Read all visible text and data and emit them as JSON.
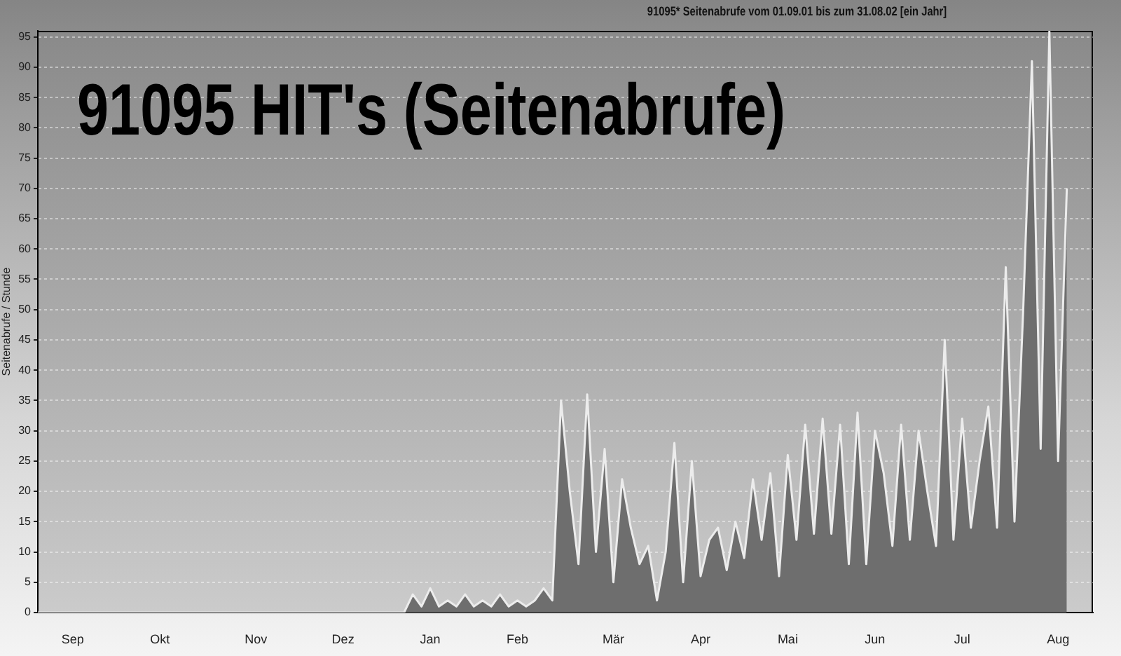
{
  "chart_data": {
    "type": "area",
    "title": "91095 HIT's (Seitenabrufe)",
    "subtitle": "91095* Seitenabrufe vom 01.09.01 bis zum 31.08.02 [ein Jahr]",
    "ylabel": "Seitenabrufe / Stunde",
    "categories": [
      null,
      null,
      null,
      null,
      "Sep",
      null,
      null,
      null,
      null,
      null,
      null,
      null,
      null,
      null,
      "Okt",
      null,
      null,
      null,
      null,
      null,
      null,
      null,
      null,
      null,
      null,
      "Nov",
      null,
      null,
      null,
      null,
      null,
      null,
      null,
      null,
      null,
      "Dez",
      null,
      null,
      null,
      null,
      null,
      null,
      null,
      null,
      null,
      "Jan",
      null,
      null,
      null,
      null,
      null,
      null,
      null,
      null,
      null,
      "Feb",
      null,
      null,
      null,
      null,
      null,
      null,
      null,
      null,
      null,
      null,
      "Mär",
      null,
      null,
      null,
      null,
      null,
      null,
      null,
      null,
      null,
      "Apr",
      null,
      null,
      null,
      null,
      null,
      null,
      null,
      null,
      null,
      "Mai",
      null,
      null,
      null,
      null,
      null,
      null,
      null,
      null,
      null,
      "Jun",
      null,
      null,
      null,
      null,
      null,
      null,
      null,
      null,
      null,
      "Jul",
      null,
      null,
      null,
      null,
      null,
      null,
      null,
      null,
      null,
      null,
      "Aug",
      null,
      null,
      null,
      null
    ],
    "values": [
      0,
      0,
      0,
      0,
      0,
      0,
      0,
      0,
      0,
      0,
      0,
      0,
      0,
      0,
      0,
      0,
      0,
      0,
      0,
      0,
      0,
      0,
      0,
      0,
      0,
      0,
      0,
      0,
      0,
      0,
      0,
      0,
      0,
      0,
      0,
      0,
      0,
      0,
      0,
      0,
      0,
      0,
      0,
      3,
      1,
      4,
      1,
      2,
      1,
      3,
      1,
      2,
      1,
      3,
      1,
      2,
      1,
      2,
      4,
      2,
      35,
      20,
      8,
      36,
      10,
      27,
      5,
      22,
      14,
      8,
      11,
      2,
      10,
      28,
      5,
      25,
      6,
      12,
      14,
      7,
      15,
      9,
      22,
      12,
      23,
      6,
      26,
      12,
      31,
      13,
      32,
      13,
      31,
      8,
      33,
      8,
      30,
      23,
      11,
      31,
      12,
      30,
      20,
      11,
      45,
      12,
      32,
      14,
      25,
      34,
      14,
      57,
      15,
      50,
      91,
      27,
      96,
      25,
      70,
      null,
      null,
      null
    ],
    "color": "#6e6e6e",
    "marker": "none",
    "line_style": "solid",
    "grid": "y",
    "ylim": [
      0,
      96
    ],
    "yticks": [
      0,
      5,
      10,
      15,
      20,
      25,
      30,
      35,
      40,
      45,
      50,
      55,
      60,
      65,
      70,
      75,
      80,
      85,
      90,
      95
    ]
  }
}
